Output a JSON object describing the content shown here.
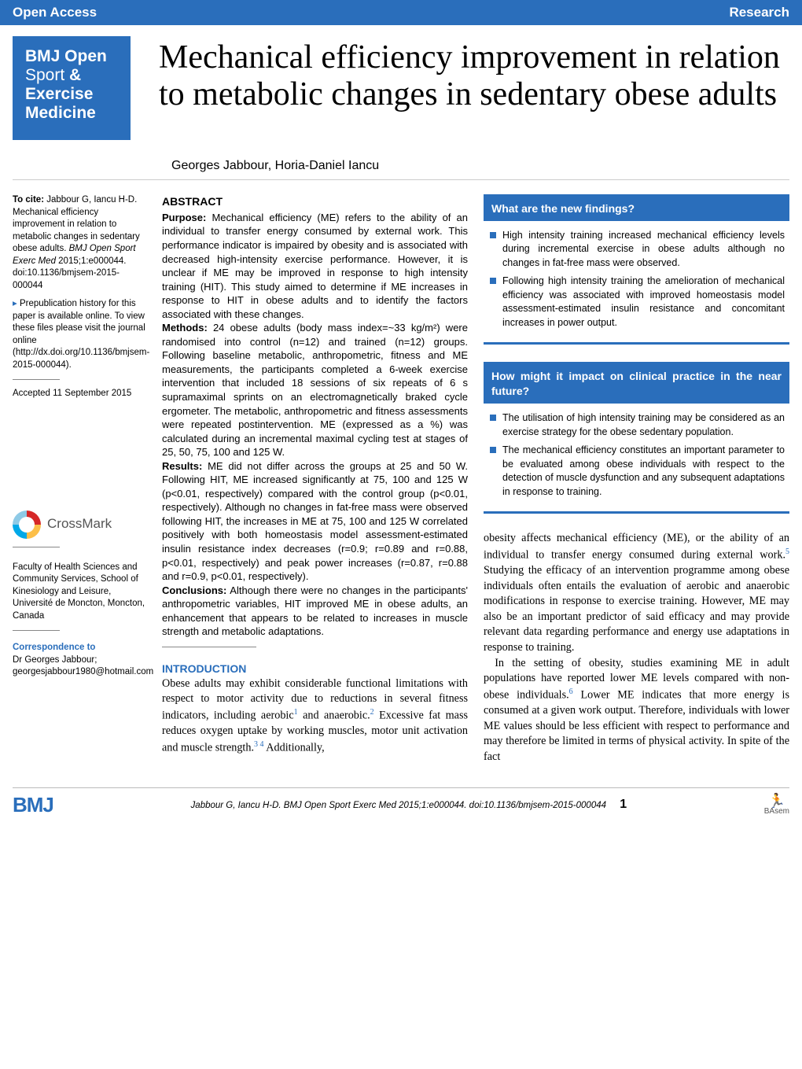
{
  "topbar": {
    "left": "Open Access",
    "right": "Research"
  },
  "journal": {
    "line1": "BMJ Open",
    "line2a": "Sport ",
    "line2b": "&",
    "line3": "Exercise",
    "line4": "Medicine"
  },
  "title": "Mechanical efficiency improvement in relation to metabolic changes in sedentary obese adults",
  "authors": "Georges Jabbour, Horia-Daniel Iancu",
  "citation": {
    "prefix": "To cite:",
    "text": " Jabbour G, Iancu H-D. Mechanical efficiency improvement in relation to metabolic changes in sedentary obese adults. ",
    "journal": "BMJ Open Sport Exerc Med",
    "rest": " 2015;1:e000044. doi:10.1136/bmjsem-2015-000044"
  },
  "prepub": "Prepublication history for this paper is available online. To view these files please visit the journal online (http://dx.doi.org/10.1136/bmjsem-2015-000044).",
  "accepted": "Accepted 11 September 2015",
  "crossmark": "CrossMark",
  "affiliation": "Faculty of Health Sciences and Community Services, School of Kinesiology and Leisure, Université de Moncton, Moncton, Canada",
  "correspondence": {
    "label": "Correspondence to",
    "text": "Dr Georges Jabbour; georgesjabbour1980@hotmail.com"
  },
  "abstract": {
    "heading": "ABSTRACT",
    "purpose_label": "Purpose:",
    "purpose": " Mechanical efficiency (ME) refers to the ability of an individual to transfer energy consumed by external work. This performance indicator is impaired by obesity and is associated with decreased high-intensity exercise performance. However, it is unclear if ME may be improved in response to high intensity training (HIT). This study aimed to determine if ME increases in response to HIT in obese adults and to identify the factors associated with these changes.",
    "methods_label": "Methods:",
    "methods": " 24 obese adults (body mass index=~33 kg/m²) were randomised into control (n=12) and trained (n=12) groups. Following baseline metabolic, anthropometric, fitness and ME measurements, the participants completed a 6-week exercise intervention that included 18 sessions of six repeats of 6 s supramaximal sprints on an electromagnetically braked cycle ergometer. The metabolic, anthropometric and fitness assessments were repeated postintervention. ME (expressed as a %) was calculated during an incremental maximal cycling test at stages of 25, 50, 75, 100 and 125 W.",
    "results_label": "Results:",
    "results": " ME did not differ across the groups at 25 and 50 W. Following HIT, ME increased significantly at 75, 100 and 125 W (p<0.01, respectively) compared with the control group (p<0.01, respectively). Although no changes in fat-free mass were observed following HIT, the increases in ME at 75, 100 and 125 W correlated positively with both homeostasis model assessment-estimated insulin resistance index decreases (r=0.9; r=0.89 and r=0.88, p<0.01, respectively) and peak power increases (r=0.87, r=0.88 and r=0.9, p<0.01, respectively).",
    "conclusions_label": "Conclusions:",
    "conclusions": " Although there were no changes in the participants' anthropometric variables, HIT improved ME in obese adults, an enhancement that appears to be related to increases in muscle strength and metabolic adaptations."
  },
  "introduction": {
    "heading": "INTRODUCTION",
    "p1a": "Obese adults may exhibit considerable functional limitations with respect to motor activity due to reductions in several fitness indicators, including aerobic",
    "ref1": "1",
    "p1b": " and anaerobic.",
    "ref2": "2",
    "p1c": " Excessive fat mass reduces oxygen uptake by working muscles, motor unit activation and muscle strength.",
    "ref34": "3 4",
    "p1d": " Additionally,"
  },
  "box1": {
    "heading": "What are the new findings?",
    "items": [
      "High intensity training increased mechanical efficiency levels during incremental exercise in obese adults although no changes in fat-free mass were observed.",
      "Following high intensity training the amelioration of mechanical efficiency was associated with improved homeostasis model assessment-estimated insulin resistance and concomitant increases in power output."
    ]
  },
  "box2": {
    "heading": "How might it impact on clinical practice in the near future?",
    "items": [
      "The utilisation of high intensity training may be considered as an exercise strategy for the obese sedentary population.",
      "The mechanical efficiency constitutes an important parameter to be evaluated among obese individuals with respect to the detection of muscle dysfunction and any subsequent adaptations in response to training."
    ]
  },
  "body_col2": {
    "p1a": "obesity affects mechanical efficiency (ME), or the ability of an individual to transfer energy consumed during external work.",
    "ref5": "5",
    "p1b": " Studying the efficacy of an intervention programme among obese individuals often entails the evaluation of aerobic and anaerobic modifications in response to exercise training. However, ME may also be an important predictor of said efficacy and may provide relevant data regarding performance and energy use adaptations in response to training.",
    "p2a": "In the setting of obesity, studies examining ME in adult populations have reported lower ME levels compared with non-obese individuals.",
    "ref6": "6",
    "p2b": " Lower ME indicates that more energy is consumed at a given work output. Therefore, individuals with lower ME values should be less efficient with respect to performance and may therefore be limited in terms of physical activity. In spite of the fact"
  },
  "footer": {
    "bmj": "BMJ",
    "cite": "Jabbour G, Iancu H-D. BMJ Open Sport Exerc Med 2015;1:e000044. doi:10.1136/bmjsem-2015-000044",
    "page": "1",
    "basem": "BAsem"
  }
}
